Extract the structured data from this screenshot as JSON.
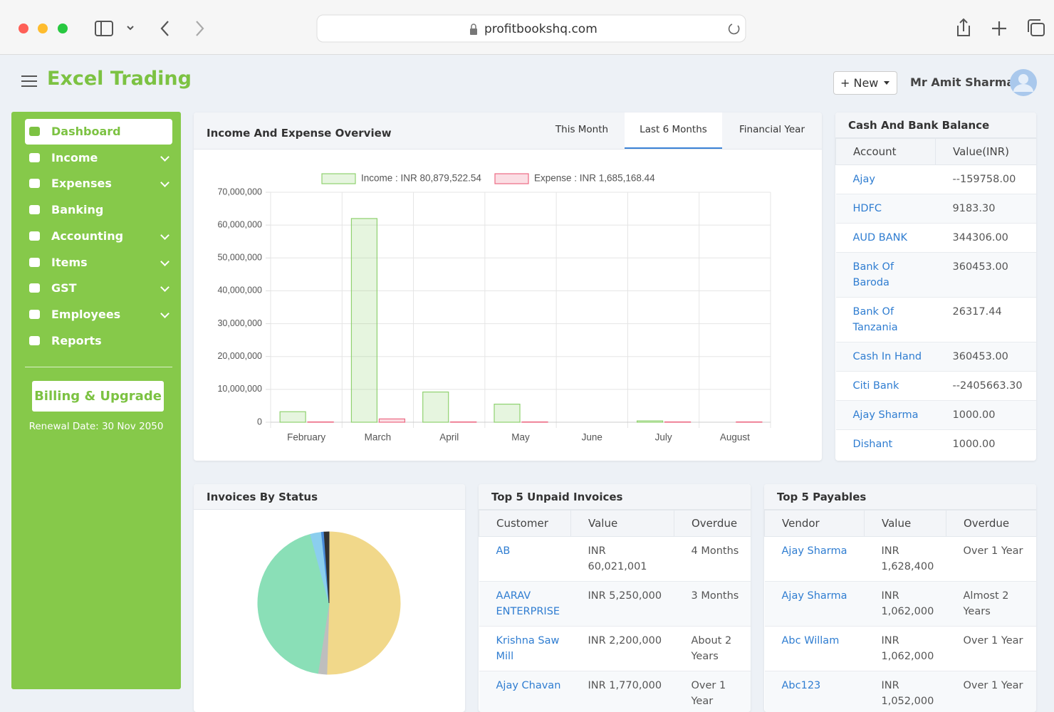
{
  "browser": {
    "url": "profitbookshq.com"
  },
  "header": {
    "brand": "Excel Trading",
    "new_button": "+ New",
    "user": "Mr Amit Sharma"
  },
  "sidebar": {
    "menu": [
      "Dashboard",
      "Income",
      "Expenses",
      "Banking",
      "Accounting",
      "Items",
      "GST",
      "Employees",
      "Reports"
    ],
    "billing": "Billing & Upgrade",
    "renewal": "Renewal Date: 30 Nov 2050"
  },
  "overview": {
    "tabs": [
      "This Month",
      "Last 6 Months",
      "Financial Year"
    ]
  },
  "chart_data": [
    {
      "type": "bar",
      "title": "Income And Expense Overview",
      "categories": [
        "February",
        "March",
        "April",
        "May",
        "June",
        "July",
        "August"
      ],
      "series": [
        {
          "name": "Income : INR 80,879,522.54",
          "color": "#8fd16f",
          "values": [
            3200000,
            62000000,
            9200000,
            5500000,
            0,
            400000,
            0
          ]
        },
        {
          "name": "Expense : INR 1,685,168.44",
          "color": "#ec6b84",
          "values": [
            100000,
            1000000,
            100000,
            100000,
            0,
            100000,
            100000
          ]
        }
      ],
      "ylim": [
        0,
        70000000
      ],
      "yticks": [
        0,
        {
          "value": 10000000,
          "label": "10,000,000"
        },
        {
          "value": 20000000,
          "label": "20,000,000"
        },
        {
          "value": 30000000,
          "label": "30,000,000"
        },
        {
          "value": 40000000,
          "label": "40,000,000"
        },
        {
          "value": 50000000,
          "label": "50,000,000"
        },
        {
          "value": 60000000,
          "label": "60,000,000"
        },
        {
          "value": 70000000,
          "label": "70,000,000"
        }
      ],
      "grid": true
    },
    {
      "type": "pie",
      "title": "Invoices By Status",
      "categories": [
        null,
        null,
        null,
        null,
        null,
        null
      ],
      "values": [
        50.5,
        2,
        43.3,
        2.5,
        0.6,
        1.1
      ],
      "colors": [
        "#f8df8e",
        "#c4c4c4",
        "#8ee6bd",
        "#8fd4f5",
        "#4a8fe0",
        "#333333"
      ]
    }
  ],
  "bank": {
    "title": "Cash And Bank Balance",
    "columns": [
      "Account",
      "Value(INR)"
    ],
    "rows": [
      [
        "Ajay",
        "--159758.00"
      ],
      [
        "HDFC",
        "9183.30"
      ],
      [
        "AUD BANK",
        "344306.00"
      ],
      [
        "Bank Of Baroda",
        "360453.00"
      ],
      [
        "Bank Of Tanzania",
        "26317.44"
      ],
      [
        "Cash In Hand",
        "360453.00"
      ],
      [
        "Citi Bank",
        "--2405663.30"
      ],
      [
        "Ajay Sharma",
        "1000.00"
      ],
      [
        "Dishant",
        "1000.00"
      ]
    ]
  },
  "unpaid": {
    "title": "Top 5 Unpaid Invoices",
    "columns": [
      "Customer",
      "Value",
      "Overdue"
    ],
    "rows": [
      [
        "AB",
        "INR 60,021,001",
        "4 Months"
      ],
      [
        "AARAV ENTERPRISE",
        "INR 5,250,000",
        "3 Months"
      ],
      [
        "Krishna Saw Mill",
        "INR 2,200,000",
        "About 2 Years"
      ],
      [
        "Ajay Chavan",
        "INR 1,770,000",
        "Over 1 Year"
      ]
    ]
  },
  "payables": {
    "title": "Top 5 Payables",
    "columns": [
      "Vendor",
      "Value",
      "Overdue"
    ],
    "rows": [
      [
        "Ajay Sharma",
        "INR 1,628,400",
        "Over 1 Year"
      ],
      [
        "Ajay Sharma",
        "INR 1,062,000",
        "Almost 2 Years"
      ],
      [
        "Abc Willam",
        "INR 1,062,000",
        "Over 1 Year"
      ],
      [
        "Abc123",
        "INR 1,052,000",
        "Over 1 Year"
      ]
    ]
  }
}
